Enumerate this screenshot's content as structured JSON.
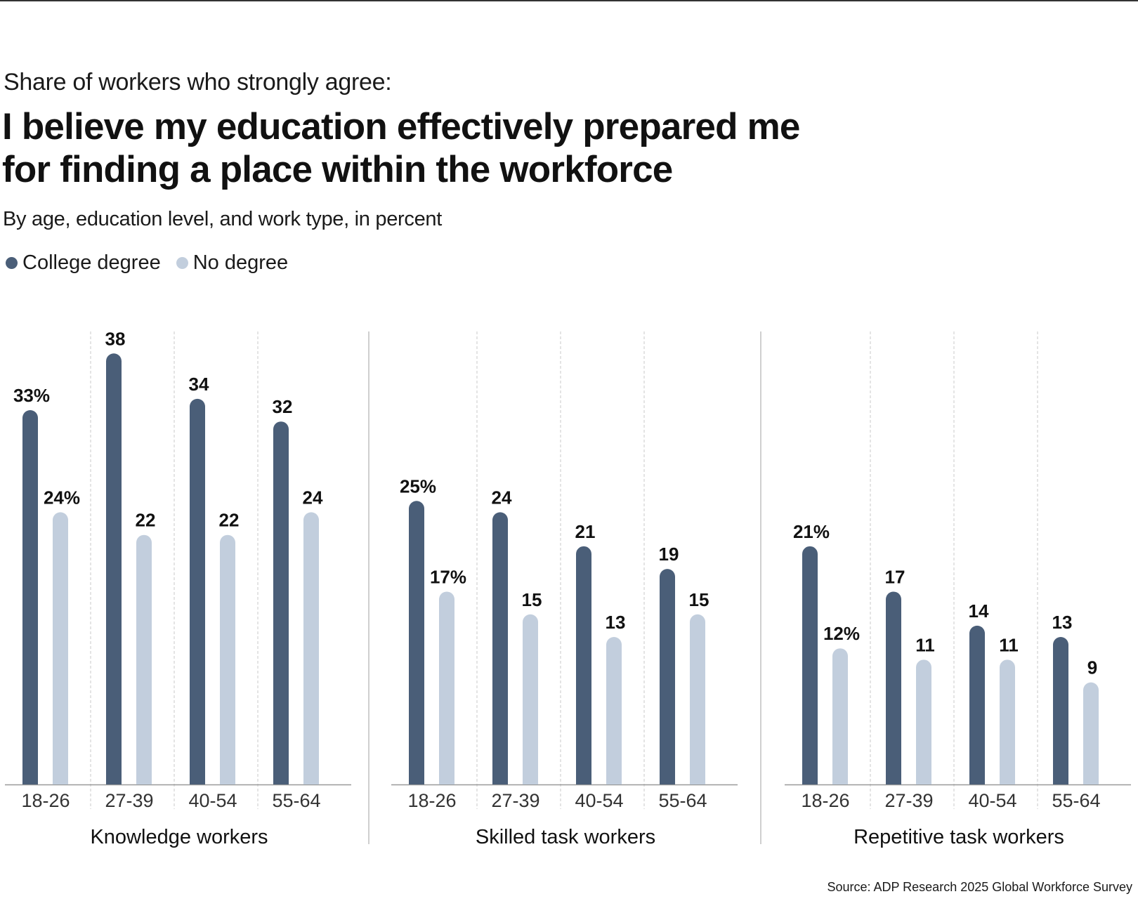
{
  "kicker": "Share of workers who strongly agree:",
  "chart_data": {
    "type": "bar",
    "title": "I believe my education effectively prepared me\nfor finding a place within the workforce",
    "subtitle": "By age, education level, and work type, in percent",
    "categories": [
      "18-26",
      "27-39",
      "40-54",
      "55-64"
    ],
    "series": [
      {
        "name": "College degree",
        "color": "#4a5e78"
      },
      {
        "name": "No degree",
        "color": "#c2cedd"
      }
    ],
    "groups": [
      {
        "name": "Knowledge workers",
        "college": [
          33,
          38,
          34,
          32
        ],
        "no_degree": [
          24,
          22,
          22,
          24
        ],
        "college_labels": [
          "33%",
          "38",
          "34",
          "32"
        ],
        "no_degree_labels": [
          "24%",
          "22",
          "22",
          "24"
        ]
      },
      {
        "name": "Skilled task workers",
        "college": [
          25,
          24,
          21,
          19
        ],
        "no_degree": [
          17,
          15,
          13,
          15
        ],
        "college_labels": [
          "25%",
          "24",
          "21",
          "19"
        ],
        "no_degree_labels": [
          "17%",
          "15",
          "13",
          "15"
        ]
      },
      {
        "name": "Repetitive task workers",
        "college": [
          21,
          17,
          14,
          13
        ],
        "no_degree": [
          12,
          11,
          11,
          9
        ],
        "college_labels": [
          "21%",
          "17",
          "14",
          "13"
        ],
        "no_degree_labels": [
          "12%",
          "11",
          "11",
          "9"
        ]
      }
    ],
    "ylim": [
      0,
      40
    ],
    "grid": true,
    "legend": "top-left"
  },
  "source": "Source: ADP Research 2025 Global Workforce Survey"
}
